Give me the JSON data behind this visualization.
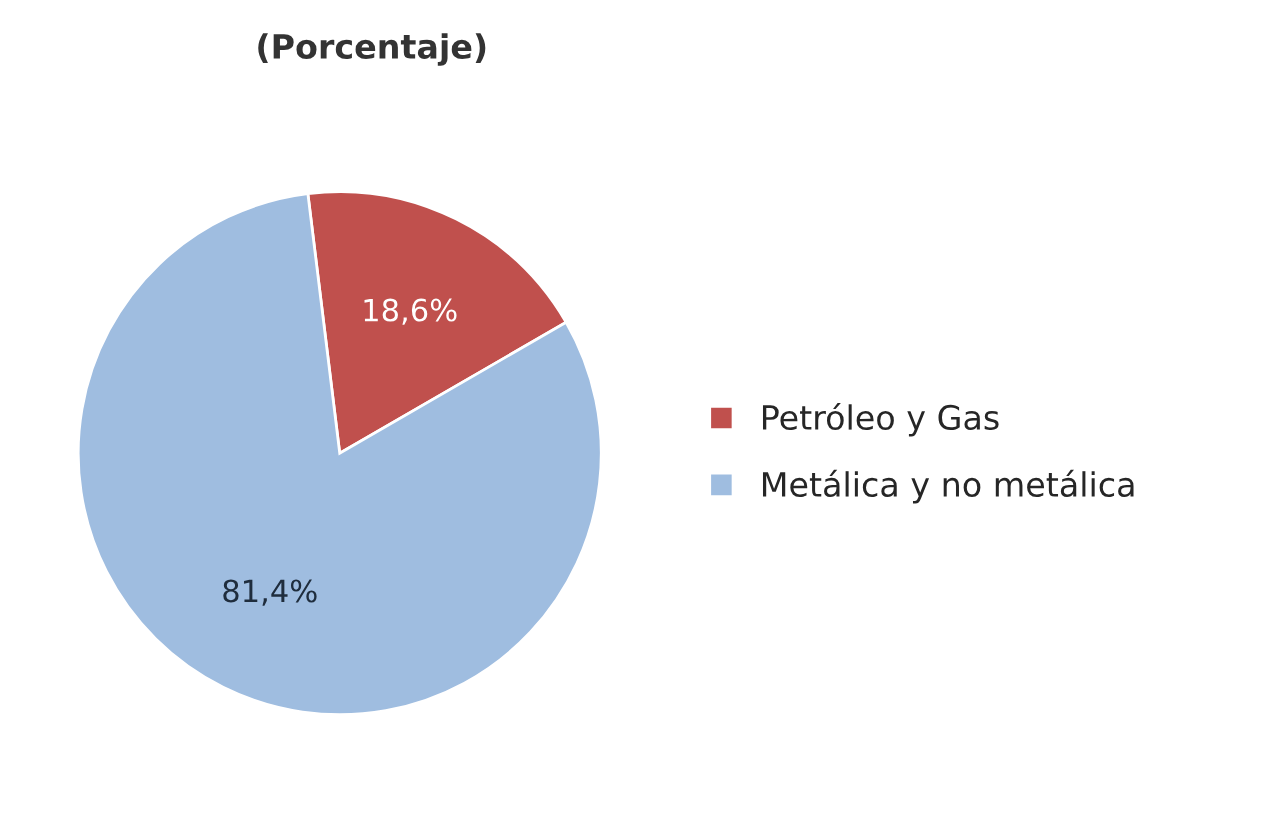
{
  "chart_data": {
    "type": "pie",
    "title": "(Porcentaje)",
    "categories": [
      "Petróleo y Gas",
      "Metálica y no metálica"
    ],
    "values": [
      18.6,
      81.4
    ],
    "colors": [
      "#c0504d",
      "#9fbde0"
    ],
    "value_labels": [
      "18,6%",
      "81,4%"
    ],
    "legend": "right"
  }
}
